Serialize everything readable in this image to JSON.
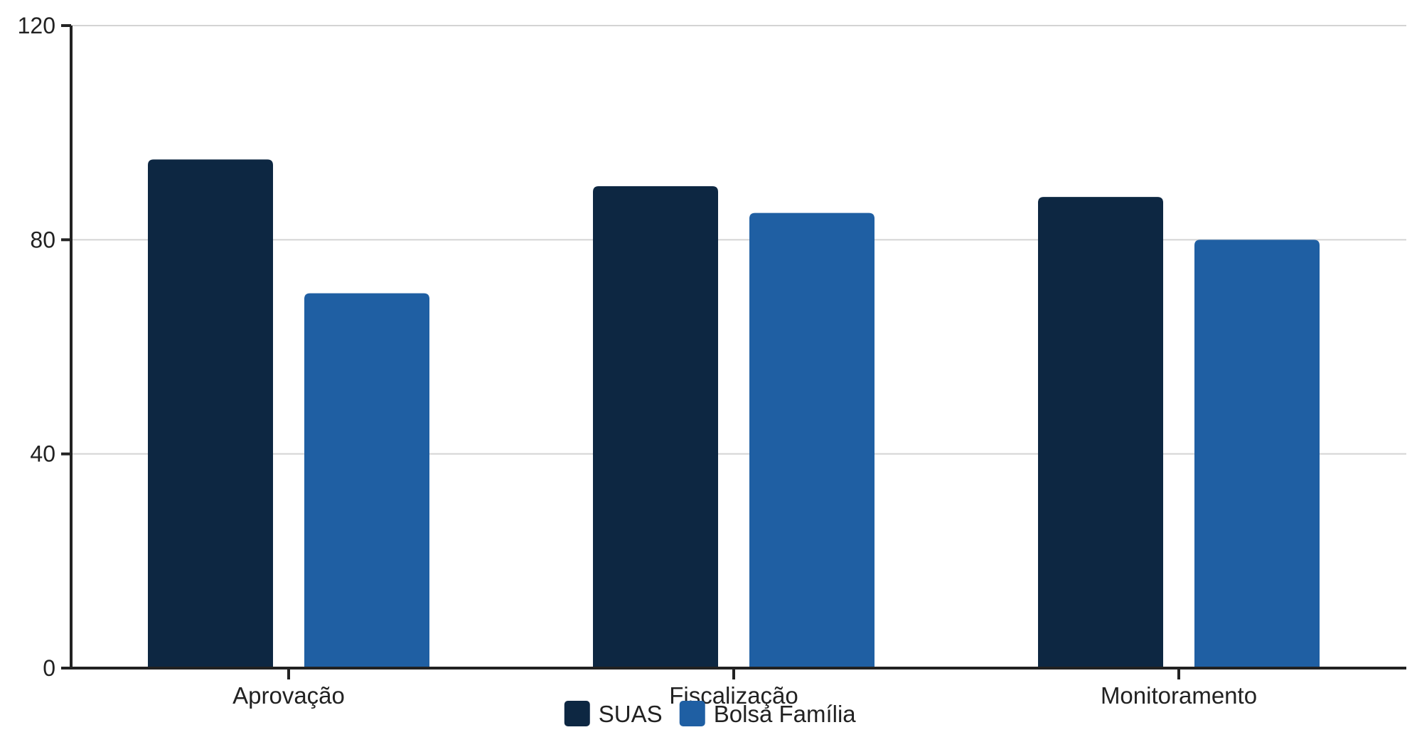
{
  "chart_data": {
    "type": "bar",
    "categories": [
      "Aprovação",
      "Fiscalização",
      "Monitoramento"
    ],
    "series": [
      {
        "name": "SUAS",
        "values": [
          95,
          90,
          88
        ],
        "color": "#0d2742"
      },
      {
        "name": "Bolsa Família",
        "values": [
          70,
          85,
          80
        ],
        "color": "#1f5fa3"
      }
    ],
    "ylim": [
      0,
      120
    ],
    "yticks": [
      0,
      40,
      80,
      120
    ],
    "grid": true,
    "legend": "bottom-center",
    "title": "",
    "xlabel": "",
    "ylabel": ""
  }
}
